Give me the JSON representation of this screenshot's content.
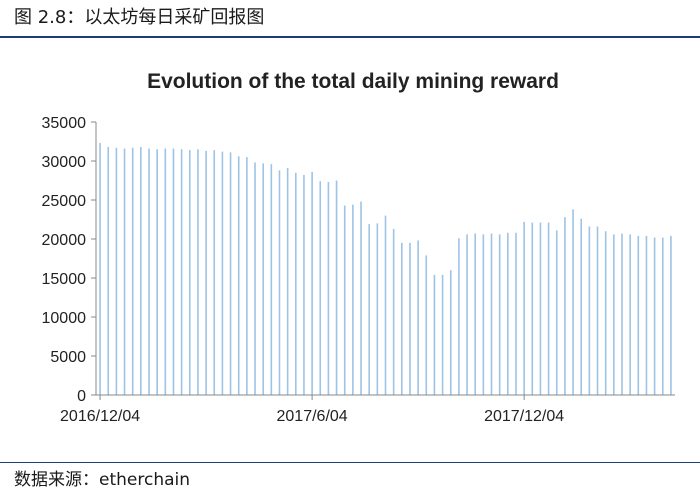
{
  "figure": {
    "label": "图 2.8：以太坊每日采矿回报图",
    "source": "数据来源：etherchain"
  },
  "colors": {
    "bar": "#9dc3e6",
    "axis": "#888888",
    "rule": "#1f3b73"
  },
  "chart_data": {
    "type": "bar",
    "title": "Evolution of the total daily mining reward",
    "xlabel": "",
    "ylabel": "",
    "ylim": [
      0,
      35000
    ],
    "yticks": [
      0,
      5000,
      10000,
      15000,
      20000,
      25000,
      30000,
      35000
    ],
    "grid": false,
    "legend": "none",
    "x_tick_labels": [
      {
        "label": "2016/12/04",
        "index": 0
      },
      {
        "label": "2017/6/04",
        "index": 26
      },
      {
        "label": "2017/12/04",
        "index": 52
      }
    ],
    "values": [
      32300,
      31800,
      31700,
      31600,
      31700,
      31800,
      31600,
      31500,
      31600,
      31600,
      31500,
      31400,
      31500,
      31300,
      31400,
      31200,
      31100,
      30600,
      30500,
      29800,
      29700,
      29600,
      28800,
      29100,
      28500,
      28200,
      28600,
      27400,
      27300,
      27500,
      24300,
      24400,
      24800,
      21900,
      22000,
      23000,
      21300,
      19500,
      19500,
      19800,
      17900,
      15400,
      15400,
      16000,
      20100,
      20600,
      20700,
      20600,
      20700,
      20600,
      20800,
      20800,
      22200,
      22100,
      22100,
      22100,
      21100,
      22800,
      23800,
      22600,
      21600,
      21600,
      21000,
      20600,
      20700,
      20600,
      20400,
      20400,
      20200,
      20200,
      20400
    ]
  }
}
